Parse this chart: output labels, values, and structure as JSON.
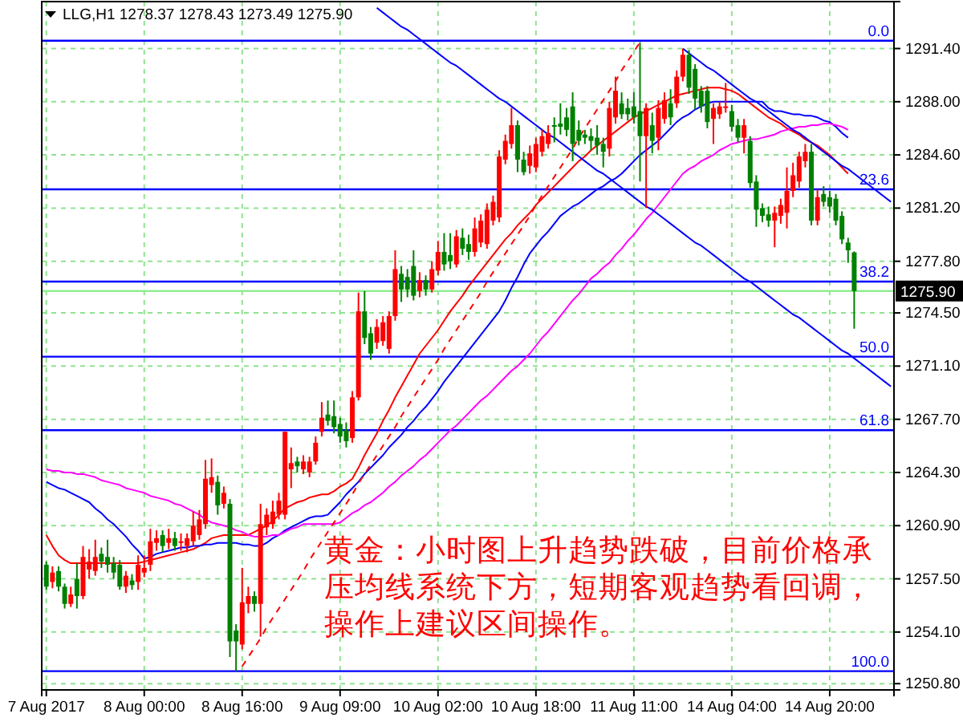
{
  "chart_data": {
    "type": "candlestick",
    "title": "LLG,H1  1278.37 1278.43 1273.49 1275.90",
    "categories": [
      "7 Aug 2017",
      null,
      null,
      null,
      null,
      null,
      null,
      null,
      null,
      null,
      null,
      null,
      null,
      null,
      null,
      null,
      "8 Aug 00:00",
      null,
      null,
      null,
      null,
      null,
      null,
      null,
      null,
      null,
      null,
      null,
      null,
      null,
      null,
      null,
      "8 Aug 16:00",
      null,
      null,
      null,
      null,
      null,
      null,
      null,
      null,
      null,
      null,
      null,
      null,
      null,
      null,
      null,
      "9 Aug 09:00",
      null,
      null,
      null,
      null,
      null,
      null,
      null,
      null,
      null,
      null,
      null,
      null,
      null,
      null,
      null,
      "10 Aug 02:00",
      null,
      null,
      null,
      null,
      null,
      null,
      null,
      null,
      null,
      null,
      null,
      null,
      null,
      null,
      null,
      "10 Aug 18:00",
      null,
      null,
      null,
      null,
      null,
      null,
      null,
      null,
      null,
      null,
      null,
      null,
      null,
      null,
      null,
      "11 Aug 11:00",
      null,
      null,
      null,
      null,
      null,
      null,
      null,
      null,
      null,
      null,
      null,
      null,
      null,
      null,
      null,
      "14 Aug 04:00",
      null,
      null,
      null,
      null,
      null,
      null,
      null,
      null,
      null,
      null,
      null,
      null,
      null,
      null,
      null,
      "14 Aug 20:00",
      null,
      null,
      null,
      null,
      null,
      null,
      null,
      null,
      null,
      null
    ],
    "ohlc": [
      [
        1258.4,
        1258.6,
        1256.8,
        1257.0
      ],
      [
        1257.3,
        1258.3,
        1256.9,
        1257.9
      ],
      [
        1258.0,
        1258.3,
        1256.7,
        1257.0
      ],
      [
        1257.0,
        1257.2,
        1255.6,
        1255.9
      ],
      [
        1255.9,
        1257.0,
        1255.7,
        1256.5
      ],
      [
        1257.5,
        1258.5,
        1255.6,
        1256.4
      ],
      [
        1256.4,
        1259.6,
        1256.2,
        1258.9
      ],
      [
        1258.1,
        1259.4,
        1257.5,
        1258.6
      ],
      [
        1258.0,
        1260.0,
        1257.7,
        1258.9
      ],
      [
        1259.1,
        1259.5,
        1258.2,
        1258.6
      ],
      [
        1258.9,
        1260.0,
        1257.9,
        1258.4
      ],
      [
        1258.5,
        1258.9,
        1257.5,
        1257.9
      ],
      [
        1258.4,
        1258.7,
        1256.8,
        1257.0
      ],
      [
        1257.0,
        1258.0,
        1256.6,
        1257.7
      ],
      [
        1257.4,
        1257.8,
        1256.8,
        1257.1
      ],
      [
        1257.3,
        1259.0,
        1256.8,
        1258.4
      ],
      [
        1257.9,
        1259.0,
        1257.6,
        1258.2
      ],
      [
        1258.4,
        1260.7,
        1258.0,
        1259.9
      ],
      [
        1259.8,
        1260.6,
        1259.3,
        1260.1
      ],
      [
        1260.3,
        1260.6,
        1259.2,
        1259.6
      ],
      [
        1259.8,
        1260.7,
        1259.4,
        1260.1
      ],
      [
        1260.1,
        1260.5,
        1259.3,
        1259.6
      ],
      [
        1259.8,
        1260.4,
        1259.3,
        1259.9
      ],
      [
        1259.6,
        1260.4,
        1259.2,
        1260.1
      ],
      [
        1259.9,
        1261.8,
        1259.6,
        1260.9
      ],
      [
        1260.3,
        1261.9,
        1260.0,
        1261.3
      ],
      [
        1261.0,
        1265.1,
        1260.7,
        1263.9
      ],
      [
        1263.5,
        1265.2,
        1263.0,
        1264.0
      ],
      [
        1263.7,
        1264.1,
        1261.6,
        1262.2
      ],
      [
        1262.3,
        1263.4,
        1262.0,
        1263.0
      ],
      [
        1262.3,
        1262.6,
        1252.5,
        1253.5
      ],
      [
        1254.2,
        1254.6,
        1251.6,
        1253.5
      ],
      [
        1253.3,
        1258.2,
        1253.0,
        1256.0
      ],
      [
        1255.9,
        1257.0,
        1255.3,
        1256.4
      ],
      [
        1256.4,
        1256.7,
        1255.4,
        1255.9
      ],
      [
        1255.9,
        1262.3,
        1253.8,
        1261.0
      ],
      [
        1260.8,
        1262.0,
        1260.3,
        1261.6
      ],
      [
        1261.0,
        1262.5,
        1260.7,
        1261.8
      ],
      [
        1261.6,
        1263.0,
        1261.3,
        1262.5
      ],
      [
        1261.6,
        1266.9,
        1261.3,
        1266.9
      ],
      [
        1264.5,
        1265.9,
        1263.3,
        1264.9
      ],
      [
        1265.0,
        1265.3,
        1264.3,
        1264.7
      ],
      [
        1264.5,
        1265.4,
        1264.2,
        1265.0
      ],
      [
        1264.3,
        1265.3,
        1264.0,
        1265.0
      ],
      [
        1265.0,
        1266.6,
        1264.8,
        1266.2
      ],
      [
        1266.9,
        1268.8,
        1266.6,
        1267.8
      ],
      [
        1268.0,
        1268.9,
        1267.3,
        1267.6
      ],
      [
        1267.9,
        1268.9,
        1266.8,
        1267.2
      ],
      [
        1267.4,
        1267.8,
        1266.2,
        1266.6
      ],
      [
        1267.0,
        1267.5,
        1265.9,
        1266.3
      ],
      [
        1266.5,
        1269.5,
        1266.2,
        1269.1
      ],
      [
        1269.1,
        1275.8,
        1268.9,
        1274.6
      ],
      [
        1274.6,
        1275.9,
        1272.5,
        1272.9
      ],
      [
        1273.2,
        1273.6,
        1271.5,
        1271.9
      ],
      [
        1272.6,
        1274.1,
        1272.2,
        1273.6
      ],
      [
        1272.7,
        1274.3,
        1272.4,
        1273.9
      ],
      [
        1272.2,
        1274.6,
        1271.9,
        1274.3
      ],
      [
        1274.3,
        1278.5,
        1274.0,
        1277.3
      ],
      [
        1277.0,
        1277.5,
        1275.2,
        1276.0
      ],
      [
        1276.8,
        1277.3,
        1275.5,
        1276.0
      ],
      [
        1277.5,
        1278.5,
        1275.3,
        1275.6
      ],
      [
        1275.9,
        1277.1,
        1275.5,
        1276.6
      ],
      [
        1276.6,
        1276.9,
        1275.6,
        1276.0
      ],
      [
        1276.0,
        1277.8,
        1275.8,
        1277.3
      ],
      [
        1277.2,
        1279.1,
        1276.9,
        1278.4
      ],
      [
        1278.4,
        1279.6,
        1277.2,
        1277.6
      ],
      [
        1278.2,
        1279.6,
        1277.3,
        1277.8
      ],
      [
        1277.6,
        1279.8,
        1277.4,
        1279.4
      ],
      [
        1279.3,
        1279.9,
        1278.2,
        1278.6
      ],
      [
        1278.9,
        1279.5,
        1277.9,
        1278.4
      ],
      [
        1278.4,
        1280.6,
        1278.1,
        1279.9
      ],
      [
        1279.0,
        1280.8,
        1278.7,
        1280.4
      ],
      [
        1278.9,
        1281.5,
        1278.6,
        1281.1
      ],
      [
        1280.4,
        1282.0,
        1280.1,
        1281.6
      ],
      [
        1280.6,
        1284.9,
        1280.3,
        1284.5
      ],
      [
        1284.3,
        1285.9,
        1284.0,
        1285.5
      ],
      [
        1285.3,
        1287.6,
        1285.0,
        1286.5
      ],
      [
        1286.5,
        1286.8,
        1283.5,
        1284.3
      ],
      [
        1284.3,
        1284.8,
        1283.3,
        1283.5
      ],
      [
        1283.9,
        1285.2,
        1283.4,
        1284.7
      ],
      [
        1283.8,
        1285.7,
        1283.5,
        1285.3
      ],
      [
        1284.8,
        1286.2,
        1284.5,
        1285.8
      ],
      [
        1285.3,
        1286.5,
        1285.0,
        1286.0
      ],
      [
        1286.5,
        1287.0,
        1285.4,
        1286.4
      ],
      [
        1286.6,
        1287.9,
        1285.9,
        1286.4
      ],
      [
        1287.0,
        1287.6,
        1285.8,
        1286.2
      ],
      [
        1287.7,
        1288.6,
        1284.2,
        1285.3
      ],
      [
        1286.2,
        1286.8,
        1285.2,
        1285.5
      ],
      [
        1285.9,
        1286.2,
        1285.3,
        1285.7
      ],
      [
        1285.8,
        1286.3,
        1284.9,
        1285.5
      ],
      [
        1285.7,
        1286.5,
        1284.6,
        1285.2
      ],
      [
        1285.3,
        1285.7,
        1283.8,
        1284.8
      ],
      [
        1285.0,
        1288.0,
        1284.5,
        1287.6
      ],
      [
        1287.0,
        1289.6,
        1286.6,
        1288.7
      ],
      [
        1287.9,
        1288.6,
        1286.9,
        1287.2
      ],
      [
        1287.6,
        1288.2,
        1286.8,
        1287.2
      ],
      [
        1287.7,
        1288.6,
        1286.6,
        1287.0
      ],
      [
        1287.4,
        1291.8,
        1282.9,
        1285.8
      ],
      [
        1285.8,
        1287.9,
        1281.2,
        1287.6
      ],
      [
        1286.5,
        1287.3,
        1284.7,
        1285.5
      ],
      [
        1285.7,
        1288.1,
        1284.9,
        1287.6
      ],
      [
        1286.9,
        1288.6,
        1286.6,
        1288.1
      ],
      [
        1287.9,
        1288.8,
        1286.5,
        1287.0
      ],
      [
        1287.9,
        1290.0,
        1287.6,
        1289.6
      ],
      [
        1289.6,
        1291.4,
        1289.3,
        1291.0
      ],
      [
        1291.0,
        1291.3,
        1288.5,
        1288.9
      ],
      [
        1290.1,
        1290.4,
        1287.5,
        1288.2
      ],
      [
        1288.7,
        1289.0,
        1287.3,
        1287.7
      ],
      [
        1288.7,
        1289.0,
        1286.3,
        1286.7
      ],
      [
        1286.9,
        1287.9,
        1285.3,
        1287.6
      ],
      [
        1287.2,
        1288.0,
        1286.9,
        1287.7
      ],
      [
        1287.6,
        1289.2,
        1287.3,
        1287.7
      ],
      [
        1287.4,
        1287.8,
        1286.1,
        1286.4
      ],
      [
        1286.5,
        1286.9,
        1285.4,
        1285.7
      ],
      [
        1285.7,
        1286.9,
        1284.7,
        1286.5
      ],
      [
        1285.5,
        1285.8,
        1282.5,
        1282.8
      ],
      [
        1282.9,
        1283.3,
        1280.0,
        1281.1
      ],
      [
        1281.2,
        1281.5,
        1280.3,
        1280.7
      ],
      [
        1280.8,
        1281.3,
        1280.0,
        1280.4
      ],
      [
        1280.4,
        1281.3,
        1278.7,
        1280.9
      ],
      [
        1280.7,
        1281.8,
        1280.2,
        1281.4
      ],
      [
        1280.9,
        1283.8,
        1279.9,
        1282.3
      ],
      [
        1282.3,
        1284.1,
        1281.9,
        1283.3
      ],
      [
        1282.9,
        1284.8,
        1282.5,
        1284.5
      ],
      [
        1284.2,
        1285.3,
        1283.8,
        1284.8
      ],
      [
        1284.8,
        1285.3,
        1280.1,
        1280.4
      ],
      [
        1280.4,
        1282.4,
        1280.1,
        1281.9
      ],
      [
        1282.1,
        1282.6,
        1281.3,
        1281.6
      ],
      [
        1281.9,
        1282.3,
        1280.9,
        1281.3
      ],
      [
        1281.8,
        1282.1,
        1280.1,
        1280.4
      ],
      [
        1280.7,
        1281.0,
        1278.9,
        1279.2
      ],
      [
        1279.0,
        1279.3,
        1277.7,
        1278.5
      ],
      [
        1278.37,
        1278.43,
        1273.49,
        1275.9
      ],
      null,
      null,
      null,
      null,
      null,
      null
    ],
    "colors": [
      "#008000",
      "#ff0000",
      "#008000",
      "#008000",
      "#ff0000",
      "#008000",
      "#ff0000",
      "#ff0000",
      "#ff0000",
      "#008000",
      "#008000",
      "#008000",
      "#008000",
      "#ff0000",
      "#008000",
      "#ff0000",
      "#ff0000",
      "#ff0000",
      "#ff0000",
      "#008000",
      "#ff0000",
      "#008000",
      "#ff0000",
      "#ff0000",
      "#ff0000",
      "#ff0000",
      "#ff0000",
      "#ff0000",
      "#008000",
      "#ff0000",
      "#008000",
      "#008000",
      "#ff0000",
      "#ff0000",
      "#008000",
      "#ff0000",
      "#ff0000",
      "#ff0000",
      "#ff0000",
      "#ff0000",
      "#ff0000",
      "#008000",
      "#ff0000",
      "#ff0000",
      "#ff0000",
      "#ff0000",
      "#008000",
      "#008000",
      "#008000",
      "#008000",
      "#ff0000",
      "#ff0000",
      "#008000",
      "#008000",
      "#ff0000",
      "#ff0000",
      "#ff0000",
      "#ff0000",
      "#008000",
      "#008000",
      "#008000",
      "#ff0000",
      "#008000",
      "#ff0000",
      "#ff0000",
      "#008000",
      "#008000",
      "#ff0000",
      "#008000",
      "#008000",
      "#ff0000",
      "#ff0000",
      "#ff0000",
      "#ff0000",
      "#ff0000",
      "#ff0000",
      "#ff0000",
      "#008000",
      "#008000",
      "#ff0000",
      "#ff0000",
      "#ff0000",
      "#ff0000",
      "#008000",
      "#008000",
      "#008000",
      "#008000",
      "#008000",
      "#008000",
      "#008000",
      "#008000",
      "#008000",
      "#ff0000",
      "#ff0000",
      "#008000",
      "#008000",
      "#008000",
      "#008000",
      "#ff0000",
      "#008000",
      "#ff0000",
      "#ff0000",
      "#008000",
      "#ff0000",
      "#ff0000",
      "#008000",
      "#008000",
      "#008000",
      "#008000",
      "#ff0000",
      "#ff0000",
      "#ff0000",
      "#008000",
      "#008000",
      "#ff0000",
      "#008000",
      "#008000",
      "#008000",
      "#008000",
      "#ff0000",
      "#ff0000",
      "#ff0000",
      "#ff0000",
      "#ff0000",
      "#ff0000",
      "#008000",
      "#ff0000",
      "#008000",
      "#008000",
      "#008000",
      "#008000",
      "#008000",
      "#008000",
      null,
      null,
      null,
      null,
      null,
      null
    ],
    "series": [
      {
        "type": "line",
        "color": "#ff0000",
        "values": [
          1260.3,
          1259.6,
          1259.0,
          1258.7,
          1258.5,
          1258.5,
          1258.5,
          1258.5,
          1258.5,
          1258.5,
          1258.5,
          1258.5,
          1258.5,
          1258.5,
          1258.5,
          1258.5,
          1258.6,
          1258.7,
          1258.8,
          1258.9,
          1259.0,
          1259.1,
          1259.2,
          1259.3,
          1259.4,
          1259.6,
          1259.8,
          1260.1,
          1260.2,
          1260.3,
          1260.3,
          1260.3,
          1260.3,
          1260.3,
          1260.5,
          1260.7,
          1260.9,
          1261.2,
          1261.6,
          1262.0,
          1262.2,
          1262.4,
          1262.5,
          1262.7,
          1262.8,
          1262.9,
          1262.9,
          1263.1,
          1263.4,
          1263.6,
          1263.9,
          1264.6,
          1265.4,
          1266.1,
          1266.8,
          1267.6,
          1268.3,
          1269.1,
          1269.8,
          1270.5,
          1271.2,
          1271.9,
          1272.4,
          1272.9,
          1273.4,
          1274.0,
          1274.6,
          1275.1,
          1275.6,
          1276.2,
          1276.7,
          1277.2,
          1277.7,
          1278.2,
          1278.7,
          1279.2,
          1279.6,
          1280.1,
          1280.5,
          1280.9,
          1281.4,
          1281.8,
          1282.2,
          1282.6,
          1283.0,
          1283.4,
          1283.8,
          1284.2,
          1284.5,
          1284.9,
          1285.2,
          1285.5,
          1285.8,
          1286.1,
          1286.4,
          1286.7,
          1287.0,
          1287.2,
          1287.4,
          1287.6,
          1287.8,
          1288.0,
          1288.2,
          1288.4,
          1288.5,
          1288.6,
          1288.7,
          1288.8,
          1288.9,
          1288.9,
          1288.9,
          1288.8,
          1288.7,
          1288.5,
          1288.2,
          1287.9,
          1287.6,
          1287.3,
          1287.0,
          1286.8,
          1286.6,
          1286.3,
          1286.1,
          1285.9,
          1285.6,
          1285.4,
          1285.2,
          1284.9,
          1284.6,
          1284.2,
          1283.8,
          1283.4,
          null,
          null,
          null,
          null,
          null,
          null,
          null
        ]
      },
      {
        "type": "line",
        "color": "#0000ff",
        "values": [
          1263.7,
          1263.5,
          1263.3,
          1263.2,
          1263.0,
          1262.8,
          1262.6,
          1262.4,
          1262.0,
          1261.7,
          1261.3,
          1261.0,
          1260.6,
          1260.2,
          1259.7,
          1259.3,
          1258.8,
          1258.9,
          1259.1,
          1259.2,
          1259.3,
          1259.4,
          1259.5,
          1259.5,
          1259.6,
          1259.6,
          1259.7,
          1259.7,
          1259.8,
          1259.8,
          1259.8,
          1259.8,
          1259.7,
          1259.7,
          1259.6,
          1259.6,
          1259.8,
          1260.1,
          1260.3,
          1260.6,
          1260.8,
          1261.0,
          1261.2,
          1261.4,
          1261.5,
          1261.5,
          1261.6,
          1262.0,
          1262.4,
          1262.9,
          1263.3,
          1263.7,
          1264.2,
          1264.6,
          1265.0,
          1265.4,
          1265.9,
          1266.3,
          1266.7,
          1267.2,
          1267.6,
          1268.1,
          1268.5,
          1269.0,
          1269.5,
          1270.1,
          1270.6,
          1271.1,
          1271.6,
          1272.1,
          1272.6,
          1273.1,
          1273.6,
          1274.1,
          1274.6,
          1275.3,
          1276.1,
          1276.8,
          1277.6,
          1278.3,
          1278.8,
          1279.3,
          1279.7,
          1280.2,
          1280.7,
          1281.0,
          1281.3,
          1281.5,
          1281.8,
          1282.1,
          1282.4,
          1282.6,
          1282.9,
          1283.1,
          1283.4,
          1283.8,
          1284.2,
          1284.6,
          1284.9,
          1285.2,
          1285.5,
          1285.9,
          1286.3,
          1286.7,
          1287.0,
          1287.2,
          1287.5,
          1287.7,
          1287.9,
          1288.0,
          1288.0,
          1288.0,
          1288.0,
          1288.0,
          1288.0,
          1288.0,
          1288.0,
          1288.0,
          1287.6,
          1287.4,
          1287.4,
          1287.3,
          1287.2,
          1287.2,
          1287.1,
          1287.1,
          1287.0,
          1286.8,
          1286.7,
          1286.4,
          1286.0,
          1285.7,
          null,
          null,
          null,
          null,
          null,
          null,
          null
        ]
      },
      {
        "type": "line",
        "color": "#ff00ff",
        "values": [
          1264.5,
          1264.4,
          1264.4,
          1264.3,
          1264.3,
          1264.2,
          1264.2,
          1264.1,
          1264.0,
          1263.8,
          1263.7,
          1263.6,
          1263.5,
          1263.3,
          1263.2,
          1263.1,
          1263.0,
          1262.8,
          1262.7,
          1262.6,
          1262.5,
          1262.3,
          1262.2,
          1262.0,
          1261.8,
          1261.6,
          1261.3,
          1261.1,
          1261.0,
          1260.9,
          1260.8,
          1260.6,
          1260.5,
          1260.3,
          1260.2,
          1260.2,
          1260.2,
          1260.3,
          1260.3,
          1260.5,
          1260.7,
          1260.8,
          1261.0,
          1261.0,
          1261.0,
          1261.0,
          1261.0,
          1261.0,
          1261.1,
          1261.4,
          1261.7,
          1261.9,
          1262.2,
          1262.4,
          1262.7,
          1263.0,
          1263.4,
          1263.7,
          1264.1,
          1264.4,
          1264.7,
          1265.1,
          1265.4,
          1265.8,
          1266.2,
          1266.6,
          1267.0,
          1267.3,
          1267.7,
          1268.1,
          1268.5,
          1268.9,
          1269.2,
          1269.6,
          1270.0,
          1270.4,
          1270.8,
          1271.1,
          1271.5,
          1271.9,
          1272.4,
          1272.9,
          1273.3,
          1273.8,
          1274.3,
          1274.8,
          1275.3,
          1275.7,
          1276.2,
          1276.7,
          1277.0,
          1277.4,
          1277.7,
          1278.2,
          1278.6,
          1279.1,
          1279.5,
          1280.0,
          1280.5,
          1280.9,
          1281.4,
          1281.9,
          1282.4,
          1282.9,
          1283.4,
          1283.7,
          1283.9,
          1284.2,
          1284.4,
          1284.6,
          1284.9,
          1285.1,
          1285.3,
          1285.4,
          1285.5,
          1285.6,
          1285.6,
          1285.7,
          1285.8,
          1285.9,
          1286.1,
          1286.2,
          1286.3,
          1286.4,
          1286.4,
          1286.5,
          1286.5,
          1286.6,
          1286.6,
          1286.5,
          1286.4,
          1286.2,
          null,
          null,
          null,
          null,
          null,
          null,
          null
        ]
      },
      {
        "type": "line",
        "color": "#ff0000",
        "line_style": "dashed",
        "values": [
          null,
          null,
          null,
          null,
          null,
          null,
          null,
          null,
          null,
          null,
          null,
          null,
          null,
          null,
          null,
          null,
          null,
          null,
          null,
          null,
          null,
          null,
          null,
          null,
          null,
          null,
          null,
          null,
          null,
          null,
          null,
          null,
          1251.9,
          1252.5,
          1253.1,
          1253.7,
          1254.4,
          1255.0,
          1255.6,
          1256.2,
          1256.8,
          1257.4,
          1258.0,
          1258.7,
          1259.3,
          1259.9,
          1260.5,
          1261.1,
          1261.7,
          1262.3,
          1262.9,
          1263.6,
          1264.2,
          1264.8,
          1265.4,
          1266.0,
          1266.6,
          1267.2,
          1267.9,
          1268.5,
          1269.1,
          1269.7,
          1270.3,
          1270.9,
          1271.5,
          1272.2,
          1272.8,
          1273.4,
          1274.0,
          1274.6,
          1275.2,
          1275.8,
          1276.5,
          1277.1,
          1277.7,
          1278.3,
          1278.9,
          1279.5,
          1280.1,
          1280.7,
          1281.4,
          1282.0,
          1282.6,
          1283.2,
          1283.8,
          1284.4,
          1285.0,
          1285.7,
          1286.3,
          1286.9,
          1287.5,
          1288.1,
          1288.7,
          1289.3,
          1290.0,
          1290.6,
          1291.2,
          1291.8,
          null,
          null,
          null,
          null,
          null,
          null,
          null,
          null,
          null,
          null,
          null,
          null,
          null,
          null,
          null,
          null,
          null,
          null,
          null,
          null,
          null,
          null,
          null,
          null,
          null,
          null,
          null,
          null,
          null,
          null,
          null,
          null,
          null,
          null,
          null,
          null,
          null,
          null,
          null,
          null,
          null
        ]
      },
      {
        "type": "line",
        "color": "#0000ff",
        "values": [
          null,
          null,
          null,
          null,
          null,
          null,
          null,
          null,
          null,
          null,
          null,
          null,
          null,
          null,
          null,
          null,
          null,
          null,
          null,
          null,
          null,
          null,
          null,
          null,
          null,
          null,
          null,
          null,
          null,
          null,
          null,
          null,
          null,
          null,
          null,
          null,
          null,
          null,
          null,
          null,
          null,
          null,
          null,
          null,
          null,
          null,
          null,
          null,
          null,
          null,
          null,
          null,
          null,
          null,
          1294.0,
          1293.7,
          1293.4,
          1293.1,
          1292.8,
          1292.6,
          1292.3,
          1292.0,
          1291.7,
          1291.4,
          1291.1,
          1290.8,
          1290.5,
          1290.3,
          1290.0,
          1289.7,
          1289.4,
          1289.1,
          1288.8,
          1288.5,
          1288.2,
          1288.0,
          1287.7,
          1287.4,
          1287.1,
          1286.8,
          1286.5,
          1286.2,
          1285.9,
          1285.7,
          1285.4,
          1285.1,
          1284.8,
          1284.5,
          1284.2,
          1283.9,
          1283.6,
          1283.4,
          1283.1,
          1282.8,
          1282.5,
          1282.2,
          1281.9,
          1281.6,
          1281.3,
          1281.1,
          1280.8,
          1280.5,
          1280.2,
          1279.9,
          1279.6,
          1279.3,
          1279.0,
          1278.8,
          1278.5,
          1278.2,
          1277.9,
          1277.6,
          1277.3,
          1277.0,
          1276.7,
          1276.5,
          1276.2,
          1275.9,
          1275.6,
          1275.3,
          1275.0,
          1274.7,
          1274.4,
          1274.2,
          1273.9,
          1273.6,
          1273.3,
          1273.0,
          1272.7,
          1272.4,
          1272.1,
          1271.9,
          1271.6,
          1271.3,
          1271.0,
          1270.7,
          1270.4,
          1270.1,
          1269.8
        ]
      },
      {
        "type": "line",
        "color": "#0000ff",
        "values": [
          null,
          null,
          null,
          null,
          null,
          null,
          null,
          null,
          null,
          null,
          null,
          null,
          null,
          null,
          null,
          null,
          null,
          null,
          null,
          null,
          null,
          null,
          null,
          null,
          null,
          null,
          null,
          null,
          null,
          null,
          null,
          null,
          null,
          null,
          null,
          null,
          null,
          null,
          null,
          null,
          null,
          null,
          null,
          null,
          null,
          null,
          null,
          null,
          null,
          null,
          null,
          null,
          null,
          null,
          null,
          null,
          null,
          null,
          null,
          null,
          null,
          null,
          null,
          null,
          null,
          null,
          null,
          null,
          null,
          null,
          null,
          null,
          null,
          null,
          null,
          null,
          null,
          null,
          null,
          null,
          null,
          null,
          null,
          null,
          null,
          null,
          null,
          null,
          null,
          null,
          null,
          null,
          null,
          null,
          null,
          null,
          null,
          null,
          null,
          null,
          null,
          null,
          null,
          null,
          1291.4,
          1291.1,
          1290.8,
          1290.5,
          1290.2,
          1290.0,
          1289.7,
          1289.4,
          1289.1,
          1288.8,
          1288.5,
          1288.2,
          1288.0,
          1287.7,
          1287.4,
          1287.1,
          1286.8,
          1286.5,
          1286.2,
          1286.0,
          1285.7,
          1285.4,
          1285.1,
          1284.8,
          1284.5,
          1284.2,
          1283.9,
          1283.7,
          1283.4,
          1283.1,
          1282.8,
          1282.5,
          1282.2,
          1281.9,
          1281.6
        ]
      }
    ],
    "ylim": [
      1250.4,
      1294.4
    ],
    "yticks": [
      {
        "value": 1250.8,
        "label": "1250.80"
      },
      {
        "value": 1254.1,
        "label": "1254.10"
      },
      {
        "value": 1257.5,
        "label": "1257.50"
      },
      {
        "value": 1260.9,
        "label": "1260.90"
      },
      {
        "value": 1264.3,
        "label": "1264.30"
      },
      {
        "value": 1267.7,
        "label": "1267.70"
      },
      {
        "value": 1271.1,
        "label": "1271.10"
      },
      {
        "value": 1274.5,
        "label": "1274.50"
      },
      {
        "value": 1277.8,
        "label": "1277.80"
      },
      {
        "value": 1281.2,
        "label": "1281.20"
      },
      {
        "value": 1284.6,
        "label": "1284.60"
      },
      {
        "value": 1288,
        "label": "1288.00"
      },
      {
        "value": 1291.4,
        "label": "1291.40"
      }
    ],
    "grid": true,
    "ref_lines": [
      {
        "axis": "y",
        "value": 1275.9,
        "color": "#90ee90"
      },
      {
        "axis": "y",
        "value": 1291.9,
        "color": "#0000ff"
      },
      {
        "axis": "y",
        "value": 1282.4,
        "color": "#0000ff"
      },
      {
        "axis": "y",
        "value": 1276.5,
        "color": "#0000ff"
      },
      {
        "axis": "y",
        "value": 1271.7,
        "color": "#0000ff"
      },
      {
        "axis": "y",
        "value": 1267.0,
        "color": "#0000ff"
      },
      {
        "axis": "y",
        "value": 1251.6,
        "color": "#0000ff"
      }
    ],
    "annotations": [
      "黄金：小时图上升趋势跌破，目前价格承压均线系统下方，短期客观趋势看回调，操作上建议区间操作。",
      "1275.90",
      "0.0",
      "23.6",
      "38.2",
      "50.0",
      "61.8",
      "100.0"
    ]
  }
}
